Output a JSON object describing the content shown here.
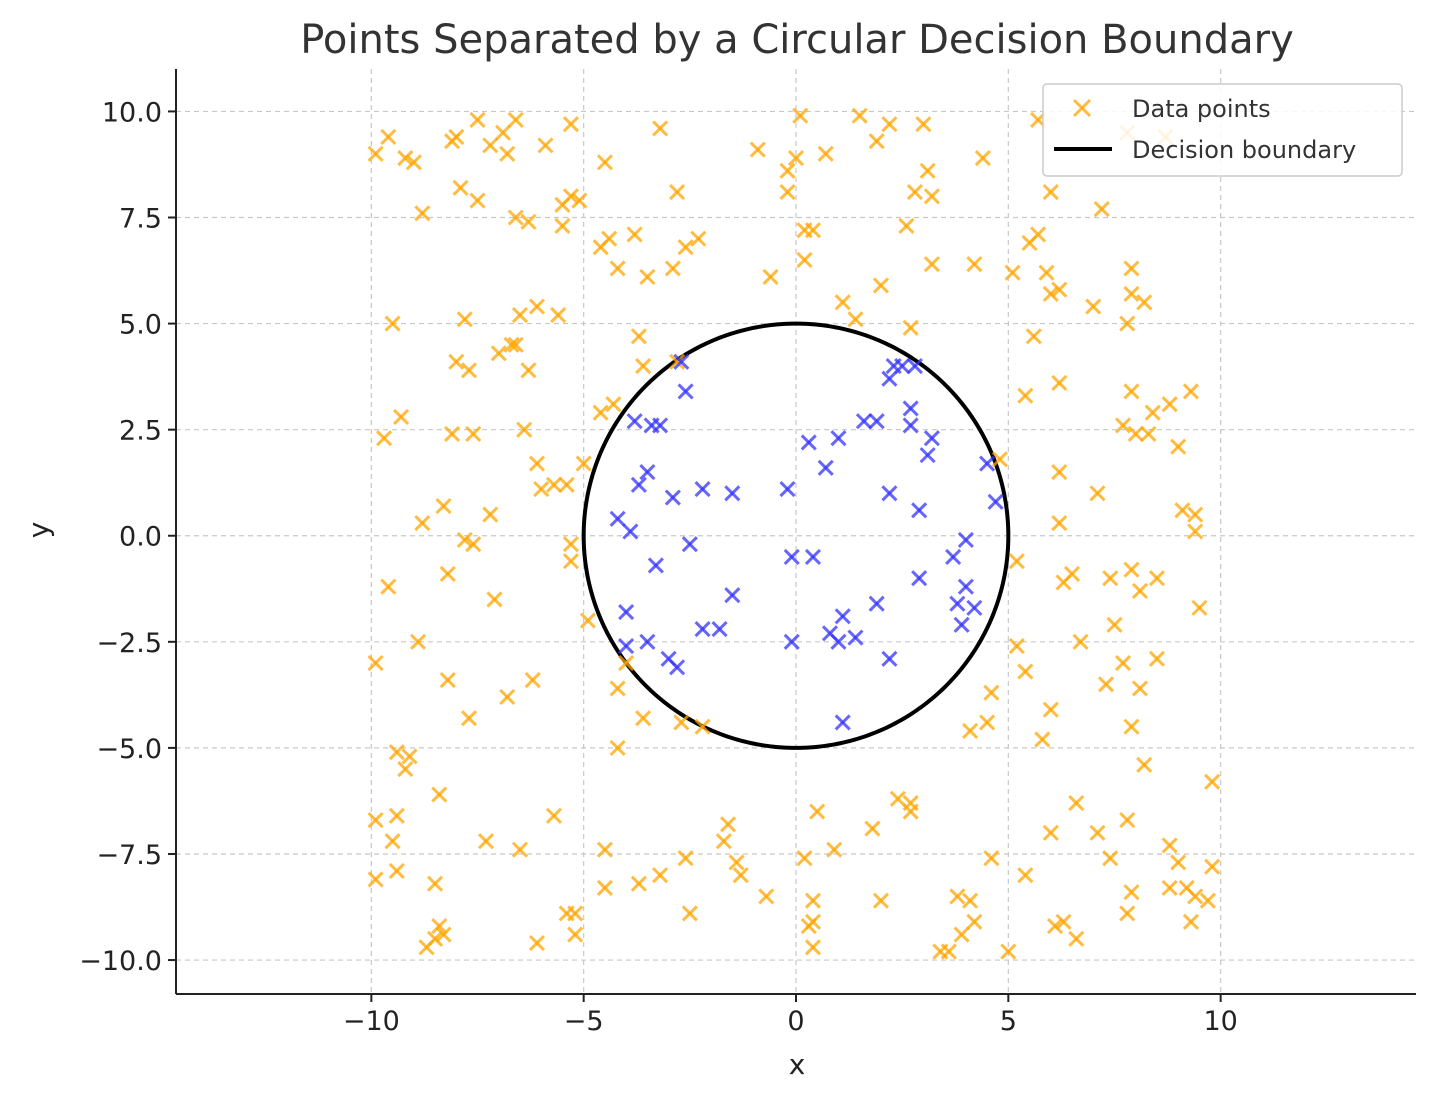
{
  "chart_data": {
    "type": "scatter",
    "title": "Points Separated by a Circular Decision Boundary",
    "xlabel": "x",
    "ylabel": "y",
    "xlim": [
      -14.6,
      14.6
    ],
    "ylim": [
      -10.8,
      11.0
    ],
    "xticks": [
      -10,
      -5,
      0,
      5,
      10
    ],
    "xtick_labels": [
      "−10",
      "−5",
      "0",
      "5",
      "10"
    ],
    "yticks": [
      10.0,
      7.5,
      5.0,
      2.5,
      0.0,
      -2.5,
      -5.0,
      -7.5,
      -10.0
    ],
    "ytick_labels": [
      "10.0",
      "7.5",
      "5.0",
      "2.5",
      "0.0",
      "−2.5",
      "−5.0",
      "−7.5",
      "−10.0"
    ],
    "grid": true,
    "legend_position": "top-right",
    "legend": [
      {
        "label": "Data points",
        "marker": "x",
        "color": "#FFA500"
      },
      {
        "label": "Decision boundary",
        "marker": "line",
        "color": "#000000"
      }
    ],
    "boundary": {
      "type": "circle",
      "center": [
        0,
        0
      ],
      "radius": 5,
      "color": "#000000"
    },
    "series": [
      {
        "name": "Data points",
        "color": "#FFA500",
        "points": [
          [
            -9.9,
            9.0
          ],
          [
            -9.6,
            9.4
          ],
          [
            -9.2,
            8.9
          ],
          [
            -9.0,
            8.8
          ],
          [
            -8.1,
            9.3
          ],
          [
            -8.0,
            9.4
          ],
          [
            -7.5,
            9.8
          ],
          [
            -7.2,
            9.2
          ],
          [
            -6.9,
            9.5
          ],
          [
            -6.8,
            9.0
          ],
          [
            -6.6,
            9.8
          ],
          [
            -5.9,
            9.2
          ],
          [
            -5.3,
            9.7
          ],
          [
            -4.5,
            8.8
          ],
          [
            -3.2,
            9.6
          ],
          [
            -2.8,
            8.1
          ],
          [
            -0.9,
            9.1
          ],
          [
            0.1,
            9.9
          ],
          [
            0.0,
            8.9
          ],
          [
            0.7,
            9.0
          ],
          [
            1.5,
            9.9
          ],
          [
            1.9,
            9.3
          ],
          [
            2.2,
            9.7
          ],
          [
            3.0,
            9.7
          ],
          [
            3.1,
            8.6
          ],
          [
            3.2,
            8.0
          ],
          [
            2.8,
            8.1
          ],
          [
            4.4,
            8.9
          ],
          [
            5.7,
            9.8
          ],
          [
            7.8,
            9.5
          ],
          [
            8.7,
            9.4
          ],
          [
            -8.8,
            7.6
          ],
          [
            -7.9,
            8.2
          ],
          [
            -7.5,
            7.9
          ],
          [
            -6.6,
            7.5
          ],
          [
            -6.3,
            7.4
          ],
          [
            -5.5,
            7.8
          ],
          [
            -5.3,
            8.0
          ],
          [
            -5.1,
            7.9
          ],
          [
            -5.5,
            7.3
          ],
          [
            -4.4,
            7.0
          ],
          [
            -4.6,
            6.8
          ],
          [
            -3.8,
            7.1
          ],
          [
            -4.2,
            6.3
          ],
          [
            -3.5,
            6.1
          ],
          [
            -2.6,
            6.8
          ],
          [
            -2.3,
            7.0
          ],
          [
            -2.9,
            6.3
          ],
          [
            -0.6,
            6.1
          ],
          [
            0.2,
            7.2
          ],
          [
            0.4,
            7.2
          ],
          [
            0.2,
            6.5
          ],
          [
            -0.2,
            8.6
          ],
          [
            -0.2,
            8.1
          ],
          [
            2.6,
            7.3
          ],
          [
            3.2,
            6.4
          ],
          [
            4.2,
            6.4
          ],
          [
            5.1,
            6.2
          ],
          [
            5.5,
            6.9
          ],
          [
            5.7,
            7.1
          ],
          [
            6.0,
            8.1
          ],
          [
            7.2,
            7.7
          ],
          [
            7.9,
            6.3
          ],
          [
            5.9,
            6.2
          ],
          [
            -9.5,
            5.0
          ],
          [
            -7.8,
            5.1
          ],
          [
            -8.0,
            4.1
          ],
          [
            -7.7,
            3.9
          ],
          [
            -7.0,
            4.3
          ],
          [
            -6.7,
            4.5
          ],
          [
            -6.6,
            4.5
          ],
          [
            -6.5,
            5.2
          ],
          [
            -6.1,
            5.4
          ],
          [
            -6.3,
            3.9
          ],
          [
            -5.6,
            5.2
          ],
          [
            -3.7,
            4.7
          ],
          [
            -3.6,
            4.0
          ],
          [
            -4.3,
            3.1
          ],
          [
            -4.6,
            2.9
          ],
          [
            -2.8,
            4.1
          ],
          [
            1.1,
            5.5
          ],
          [
            1.4,
            5.1
          ],
          [
            2.0,
            5.9
          ],
          [
            2.7,
            4.9
          ],
          [
            5.6,
            4.7
          ],
          [
            6.0,
            5.7
          ],
          [
            6.2,
            5.8
          ],
          [
            6.2,
            3.6
          ],
          [
            7.0,
            5.4
          ],
          [
            7.8,
            5.0
          ],
          [
            7.9,
            5.7
          ],
          [
            8.2,
            5.5
          ],
          [
            7.9,
            3.4
          ],
          [
            8.4,
            2.9
          ],
          [
            8.8,
            3.1
          ],
          [
            9.3,
            3.4
          ],
          [
            5.4,
            3.3
          ],
          [
            -9.7,
            2.3
          ],
          [
            -9.3,
            2.8
          ],
          [
            -8.1,
            2.4
          ],
          [
            -7.6,
            2.4
          ],
          [
            -6.4,
            2.5
          ],
          [
            -6.1,
            1.7
          ],
          [
            -6.0,
            1.1
          ],
          [
            -5.7,
            1.2
          ],
          [
            -5.4,
            1.2
          ],
          [
            -5.0,
            1.7
          ],
          [
            -8.8,
            0.3
          ],
          [
            -8.3,
            0.7
          ],
          [
            -7.2,
            0.5
          ],
          [
            -7.8,
            -0.1
          ],
          [
            -7.6,
            -0.2
          ],
          [
            -5.3,
            -0.2
          ],
          [
            -5.3,
            -0.6
          ],
          [
            4.8,
            1.8
          ],
          [
            6.2,
            1.5
          ],
          [
            6.2,
            0.3
          ],
          [
            7.1,
            1.0
          ],
          [
            7.7,
            2.6
          ],
          [
            8.0,
            2.4
          ],
          [
            8.3,
            2.4
          ],
          [
            9.0,
            2.1
          ],
          [
            9.1,
            0.6
          ],
          [
            9.4,
            0.5
          ],
          [
            9.4,
            0.1
          ],
          [
            -9.6,
            -1.2
          ],
          [
            -7.1,
            -1.5
          ],
          [
            -8.2,
            -0.9
          ],
          [
            -8.9,
            -2.5
          ],
          [
            -9.9,
            -3.0
          ],
          [
            -8.2,
            -3.4
          ],
          [
            -7.7,
            -4.3
          ],
          [
            -6.8,
            -3.8
          ],
          [
            -6.2,
            -3.4
          ],
          [
            -4.9,
            -2.0
          ],
          [
            -4.2,
            -3.6
          ],
          [
            -4.0,
            -3.0
          ],
          [
            -3.6,
            -4.3
          ],
          [
            -2.7,
            -4.4
          ],
          [
            -2.2,
            -4.5
          ],
          [
            -4.2,
            -5.0
          ],
          [
            5.2,
            -0.6
          ],
          [
            5.2,
            -2.6
          ],
          [
            5.4,
            -3.2
          ],
          [
            6.3,
            -1.1
          ],
          [
            6.5,
            -0.9
          ],
          [
            6.7,
            -2.5
          ],
          [
            7.4,
            -1.0
          ],
          [
            7.5,
            -2.1
          ],
          [
            7.7,
            -3.0
          ],
          [
            7.9,
            -0.8
          ],
          [
            8.1,
            -1.3
          ],
          [
            8.5,
            -1.0
          ],
          [
            8.5,
            -2.9
          ],
          [
            9.5,
            -1.7
          ],
          [
            7.3,
            -3.5
          ],
          [
            8.1,
            -3.6
          ],
          [
            6.0,
            -4.1
          ],
          [
            5.8,
            -4.8
          ],
          [
            7.9,
            -4.5
          ],
          [
            4.6,
            -3.7
          ],
          [
            4.5,
            -4.4
          ],
          [
            4.1,
            -4.6
          ],
          [
            -9.4,
            -5.1
          ],
          [
            -9.1,
            -5.2
          ],
          [
            -9.2,
            -5.5
          ],
          [
            -9.9,
            -6.7
          ],
          [
            -9.4,
            -6.6
          ],
          [
            -8.4,
            -6.1
          ],
          [
            -5.7,
            -6.6
          ],
          [
            -9.5,
            -7.2
          ],
          [
            -9.4,
            -7.9
          ],
          [
            -9.9,
            -8.1
          ],
          [
            -7.3,
            -7.2
          ],
          [
            -6.5,
            -7.4
          ],
          [
            -4.5,
            -7.4
          ],
          [
            -3.7,
            -8.2
          ],
          [
            -3.2,
            -8.0
          ],
          [
            -2.6,
            -7.6
          ],
          [
            -4.5,
            -8.3
          ],
          [
            -1.6,
            -6.8
          ],
          [
            -1.7,
            -7.2
          ],
          [
            -1.4,
            -7.7
          ],
          [
            -1.3,
            -8.0
          ],
          [
            -0.7,
            -8.5
          ],
          [
            0.5,
            -6.5
          ],
          [
            0.2,
            -7.6
          ],
          [
            0.9,
            -7.4
          ],
          [
            1.8,
            -6.9
          ],
          [
            2.4,
            -6.2
          ],
          [
            2.7,
            -6.3
          ],
          [
            2.7,
            -6.5
          ],
          [
            0.4,
            -8.6
          ],
          [
            2.0,
            -8.6
          ],
          [
            5.4,
            -8.0
          ],
          [
            4.6,
            -7.6
          ],
          [
            6.0,
            -7.0
          ],
          [
            6.6,
            -6.3
          ],
          [
            7.1,
            -7.0
          ],
          [
            7.4,
            -7.6
          ],
          [
            7.8,
            -6.7
          ],
          [
            8.2,
            -5.4
          ],
          [
            9.8,
            -5.8
          ],
          [
            8.8,
            -7.3
          ],
          [
            9.0,
            -7.7
          ],
          [
            9.8,
            -7.8
          ],
          [
            7.9,
            -8.4
          ],
          [
            7.8,
            -8.9
          ],
          [
            8.8,
            -8.3
          ],
          [
            9.2,
            -8.3
          ],
          [
            9.4,
            -8.5
          ],
          [
            9.7,
            -8.6
          ],
          [
            9.3,
            -9.1
          ],
          [
            -8.7,
            -9.7
          ],
          [
            -8.5,
            -9.5
          ],
          [
            -8.4,
            -9.2
          ],
          [
            -8.3,
            -9.4
          ],
          [
            -8.5,
            -8.2
          ],
          [
            -5.4,
            -8.9
          ],
          [
            -5.2,
            -8.9
          ],
          [
            -5.2,
            -9.4
          ],
          [
            -6.1,
            -9.6
          ],
          [
            -2.5,
            -8.9
          ],
          [
            0.4,
            -9.1
          ],
          [
            0.4,
            -9.7
          ],
          [
            0.3,
            -9.2
          ],
          [
            3.4,
            -9.8
          ],
          [
            3.6,
            -9.8
          ],
          [
            3.8,
            -8.5
          ],
          [
            4.1,
            -8.6
          ],
          [
            3.9,
            -9.4
          ],
          [
            4.2,
            -9.1
          ],
          [
            5.0,
            -9.8
          ],
          [
            6.1,
            -9.2
          ],
          [
            6.3,
            -9.1
          ],
          [
            6.6,
            -9.5
          ]
        ]
      },
      {
        "name": "",
        "color": "#3333FF",
        "points": [
          [
            -2.7,
            4.1
          ],
          [
            -2.6,
            3.4
          ],
          [
            -3.8,
            2.7
          ],
          [
            -3.4,
            2.6
          ],
          [
            -3.2,
            2.6
          ],
          [
            -3.5,
            1.5
          ],
          [
            -3.7,
            1.2
          ],
          [
            -2.9,
            0.9
          ],
          [
            -2.2,
            1.1
          ],
          [
            -1.5,
            1.0
          ],
          [
            -4.2,
            0.4
          ],
          [
            -3.9,
            0.1
          ],
          [
            -2.5,
            -0.2
          ],
          [
            -3.3,
            -0.7
          ],
          [
            -4.0,
            -1.8
          ],
          [
            -4.0,
            -2.6
          ],
          [
            -3.5,
            -2.5
          ],
          [
            -3.0,
            -2.9
          ],
          [
            -2.8,
            -3.1
          ],
          [
            -2.2,
            -2.2
          ],
          [
            -1.8,
            -2.2
          ],
          [
            -1.5,
            -1.4
          ],
          [
            -0.2,
            1.1
          ],
          [
            0.3,
            2.2
          ],
          [
            1.0,
            2.3
          ],
          [
            0.7,
            1.6
          ],
          [
            1.6,
            2.7
          ],
          [
            1.9,
            2.7
          ],
          [
            2.2,
            3.7
          ],
          [
            2.3,
            4.0
          ],
          [
            2.5,
            4.0
          ],
          [
            2.8,
            4.0
          ],
          [
            2.7,
            3.0
          ],
          [
            2.7,
            2.6
          ],
          [
            3.2,
            2.3
          ],
          [
            3.1,
            1.9
          ],
          [
            2.2,
            1.0
          ],
          [
            2.9,
            0.6
          ],
          [
            4.5,
            1.7
          ],
          [
            4.7,
            0.8
          ],
          [
            4.0,
            -0.1
          ],
          [
            3.7,
            -0.5
          ],
          [
            -0.1,
            -0.5
          ],
          [
            0.4,
            -0.5
          ],
          [
            2.9,
            -1.0
          ],
          [
            -0.1,
            -2.5
          ],
          [
            0.8,
            -2.3
          ],
          [
            1.0,
            -2.5
          ],
          [
            1.1,
            -1.9
          ],
          [
            1.4,
            -2.4
          ],
          [
            1.9,
            -1.6
          ],
          [
            2.2,
            -2.9
          ],
          [
            3.8,
            -1.6
          ],
          [
            4.0,
            -1.2
          ],
          [
            4.2,
            -1.7
          ],
          [
            3.9,
            -2.1
          ],
          [
            1.1,
            -4.4
          ]
        ]
      }
    ]
  }
}
